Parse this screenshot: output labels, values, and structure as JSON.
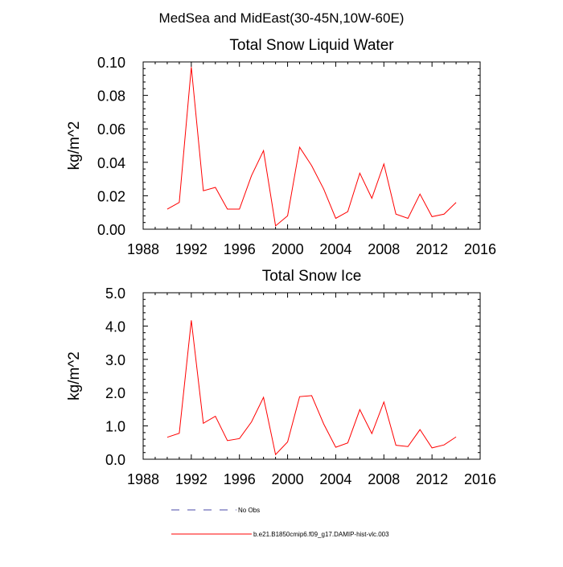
{
  "figure": {
    "title": "MedSea and MidEast(30-45N,10W-60E)"
  },
  "colors": {
    "series_line": "#ff0000",
    "obs_line": "#4a4aa8",
    "axis": "#000000",
    "background": "#ffffff"
  },
  "chart_data": [
    {
      "type": "line",
      "title": "Total Snow Liquid Water",
      "xlabel": "",
      "ylabel": "kg/m^2",
      "xlim": [
        1988,
        2016
      ],
      "ylim": [
        0,
        0.1
      ],
      "x_ticks": [
        1988,
        1992,
        1996,
        2000,
        2004,
        2008,
        2012,
        2016
      ],
      "x_tick_labels": [
        "1988",
        "1992",
        "1996",
        "2000",
        "2004",
        "2008",
        "2012",
        "2016"
      ],
      "y_ticks": [
        0,
        0.02,
        0.04,
        0.06,
        0.08,
        0.1
      ],
      "y_tick_labels": [
        "0.00",
        "0.02",
        "0.04",
        "0.06",
        "0.08",
        "0.10"
      ],
      "grid": false,
      "series": [
        {
          "name": "b.e21.B1850cmip6.f09_g17.DAMIP-hist-vlc.003",
          "color": "#ff0000",
          "x": [
            1990,
            1991,
            1992,
            1993,
            1994,
            1995,
            1996,
            1997,
            1998,
            1999,
            2000,
            2001,
            2002,
            2003,
            2004,
            2005,
            2006,
            2007,
            2008,
            2009,
            2010,
            2011,
            2012,
            2013,
            2014
          ],
          "values": [
            0.012,
            0.016,
            0.097,
            0.023,
            0.025,
            0.012,
            0.012,
            0.032,
            0.047,
            0.002,
            0.008,
            0.049,
            0.038,
            0.024,
            0.0065,
            0.0105,
            0.0335,
            0.0185,
            0.039,
            0.009,
            0.0065,
            0.021,
            0.0075,
            0.009,
            0.016
          ]
        }
      ]
    },
    {
      "type": "line",
      "title": "Total Snow Ice",
      "xlabel": "",
      "ylabel": "kg/m^2",
      "xlim": [
        1988,
        2016
      ],
      "ylim": [
        0,
        5
      ],
      "x_ticks": [
        1988,
        1992,
        1996,
        2000,
        2004,
        2008,
        2012,
        2016
      ],
      "x_tick_labels": [
        "1988",
        "1992",
        "1996",
        "2000",
        "2004",
        "2008",
        "2012",
        "2016"
      ],
      "y_ticks": [
        0,
        1,
        2,
        3,
        4,
        5
      ],
      "y_tick_labels": [
        "0.0",
        "1.0",
        "2.0",
        "3.0",
        "4.0",
        "5.0"
      ],
      "grid": false,
      "series": [
        {
          "name": "b.e21.B1850cmip6.f09_g17.DAMIP-hist-vlc.003",
          "color": "#ff0000",
          "x": [
            1990,
            1991,
            1992,
            1993,
            1994,
            1995,
            1996,
            1997,
            1998,
            1999,
            2000,
            2001,
            2002,
            2003,
            2004,
            2005,
            2006,
            2007,
            2008,
            2009,
            2010,
            2011,
            2012,
            2013,
            2014
          ],
          "values": [
            0.66,
            0.78,
            4.17,
            1.08,
            1.29,
            0.56,
            0.62,
            1.12,
            1.86,
            0.14,
            0.52,
            1.88,
            1.91,
            1.06,
            0.36,
            0.49,
            1.49,
            0.77,
            1.72,
            0.42,
            0.38,
            0.89,
            0.34,
            0.43,
            0.67
          ]
        }
      ]
    }
  ],
  "legend": {
    "items": [
      {
        "label": "No Obs",
        "style": "dashed",
        "color": "#4a4aa8"
      },
      {
        "label": "b.e21.B1850cmip6.f09_g17.DAMIP-hist-vlc.003",
        "style": "solid",
        "color": "#ff0000"
      }
    ]
  }
}
